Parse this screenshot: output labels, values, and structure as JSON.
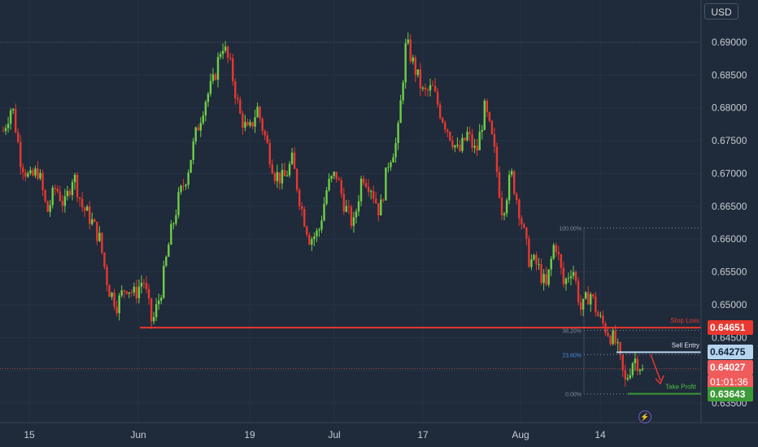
{
  "currency_label": "USD",
  "colors": {
    "background": "#1f2a3a",
    "grid": "#273347",
    "axis_text": "#c6cbd3",
    "bull": "#6fcf47",
    "bear": "#e8382f",
    "stop_loss": "#e8382f",
    "sell_entry": "#b7d4ee",
    "take_profit": "#3d9a37",
    "current_price": "#f05b5b",
    "fib": "#7f8a99"
  },
  "chart_data": {
    "type": "candlestick",
    "title": "",
    "xlabel": "",
    "ylabel": "",
    "ylim": [
      0.6325,
      0.6915
    ],
    "y_ticks": [
      "0.69000",
      "0.68500",
      "0.68000",
      "0.67500",
      "0.67000",
      "0.66500",
      "0.66000",
      "0.65500",
      "0.65000",
      "0.64500",
      "0.64000",
      "0.63500"
    ],
    "x_ticks": [
      "15",
      "Jun",
      "19",
      "Jul",
      "17",
      "Aug",
      "14"
    ],
    "close_path": [
      0.6765,
      0.6805,
      0.672,
      0.669,
      0.6705,
      0.664,
      0.668,
      0.665,
      0.67,
      0.665,
      0.663,
      0.66,
      0.6525,
      0.65,
      0.653,
      0.6515,
      0.654,
      0.647,
      0.652,
      0.66,
      0.666,
      0.67,
      0.676,
      0.681,
      0.684,
      0.69,
      0.686,
      0.679,
      0.676,
      0.68,
      0.675,
      0.67,
      0.669,
      0.672,
      0.665,
      0.66,
      0.661,
      0.668,
      0.67,
      0.665,
      0.662,
      0.67,
      0.668,
      0.664,
      0.672,
      0.675,
      0.69,
      0.686,
      0.682,
      0.683,
      0.679,
      0.676,
      0.673,
      0.676,
      0.673,
      0.68,
      0.674,
      0.664,
      0.67,
      0.664,
      0.657,
      0.656,
      0.6525,
      0.66,
      0.653,
      0.656,
      0.649,
      0.652,
      0.648,
      0.646,
      0.644,
      0.638,
      0.642,
      0.6403
    ],
    "annotations": {
      "stop_loss": {
        "label": "Stop Loss",
        "price": "0.64651"
      },
      "sell_entry": {
        "label": "Sell Entry",
        "price": "0.64275"
      },
      "take_profit": {
        "label": "Take Profit",
        "price": "0.63643"
      },
      "current": {
        "price": "0.64027",
        "countdown": "01:01:36"
      },
      "fib_levels": [
        {
          "label": "100.00%",
          "value": 0.6617
        },
        {
          "label": "38.20%",
          "value": 0.6461
        },
        {
          "label": "23.60%",
          "value": 0.6424
        },
        {
          "label": "0.00%",
          "value": 0.6364
        }
      ]
    }
  }
}
